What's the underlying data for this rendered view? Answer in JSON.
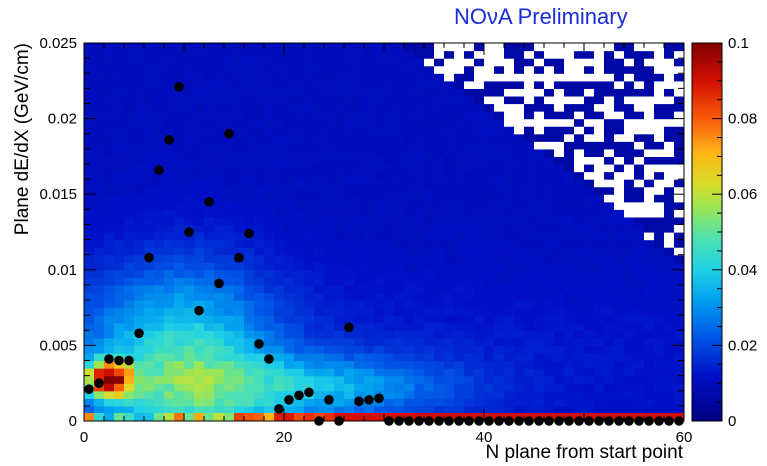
{
  "header": {
    "watermark": "NOνA Preliminary"
  },
  "chart_data": {
    "type": "heatmap",
    "title": "",
    "xlabel": "N plane from start point",
    "ylabel": "Plane dE/dX (GeV/cm)",
    "xlim": [
      0,
      60
    ],
    "ylim": [
      0,
      0.025
    ],
    "x_ticks": [
      "0",
      "20",
      "40",
      "60"
    ],
    "y_ticks": [
      "0",
      "0.005",
      "0.01",
      "0.015",
      "0.02",
      "0.025"
    ],
    "colorbar": {
      "range": [
        0,
        0.1
      ],
      "ticks": [
        "0",
        "0.02",
        "0.04",
        "0.06",
        "0.08",
        "0.1"
      ]
    },
    "grid": false,
    "overlay_points": {
      "name": "",
      "color": "#000000",
      "x": [
        0.5,
        1.5,
        2.5,
        3.5,
        4.5,
        5.5,
        6.5,
        7.5,
        8.5,
        9.5,
        10.5,
        11.5,
        12.5,
        13.5,
        14.5,
        15.5,
        16.5,
        17.5,
        18.5,
        19.5,
        20.5,
        21.5,
        22.5,
        23.5,
        24.5,
        25.5,
        26.5,
        27.5,
        28.5,
        29.5,
        30.5,
        31.5,
        32.5,
        33.5,
        34.5,
        35.5,
        36.5,
        37.5,
        38.5,
        39.5,
        40.5,
        41.5,
        42.5,
        43.5,
        44.5,
        45.5,
        46.5,
        47.5,
        48.5,
        49.5,
        50.5,
        51.5,
        52.5,
        53.5,
        54.5,
        55.5,
        56.5,
        57.5,
        58.5,
        59.5
      ],
      "y": [
        0.0021,
        0.0025,
        0.0041,
        0.004,
        0.004,
        0.0058,
        0.0108,
        0.0166,
        0.0186,
        0.0221,
        0.0125,
        0.0073,
        0.0145,
        0.0091,
        0.019,
        0.0108,
        0.0124,
        0.0051,
        0.0041,
        0.0008,
        0.0014,
        0.0017,
        0.0019,
        0.0,
        0.0014,
        0.0,
        0.0062,
        0.0013,
        0.0014,
        0.0015,
        0.0,
        0.0,
        0.0,
        0.0,
        0.0,
        0.0,
        0.0,
        0.0,
        0.0,
        0.0,
        0.0,
        0.0,
        0.0,
        0.0,
        0.0,
        0.0,
        0.0,
        0.0,
        0.0,
        0.0,
        0.0,
        0.0,
        0.0,
        0.0,
        0.0,
        0.0,
        0.0,
        0.0,
        0.0,
        0.0
      ]
    }
  }
}
